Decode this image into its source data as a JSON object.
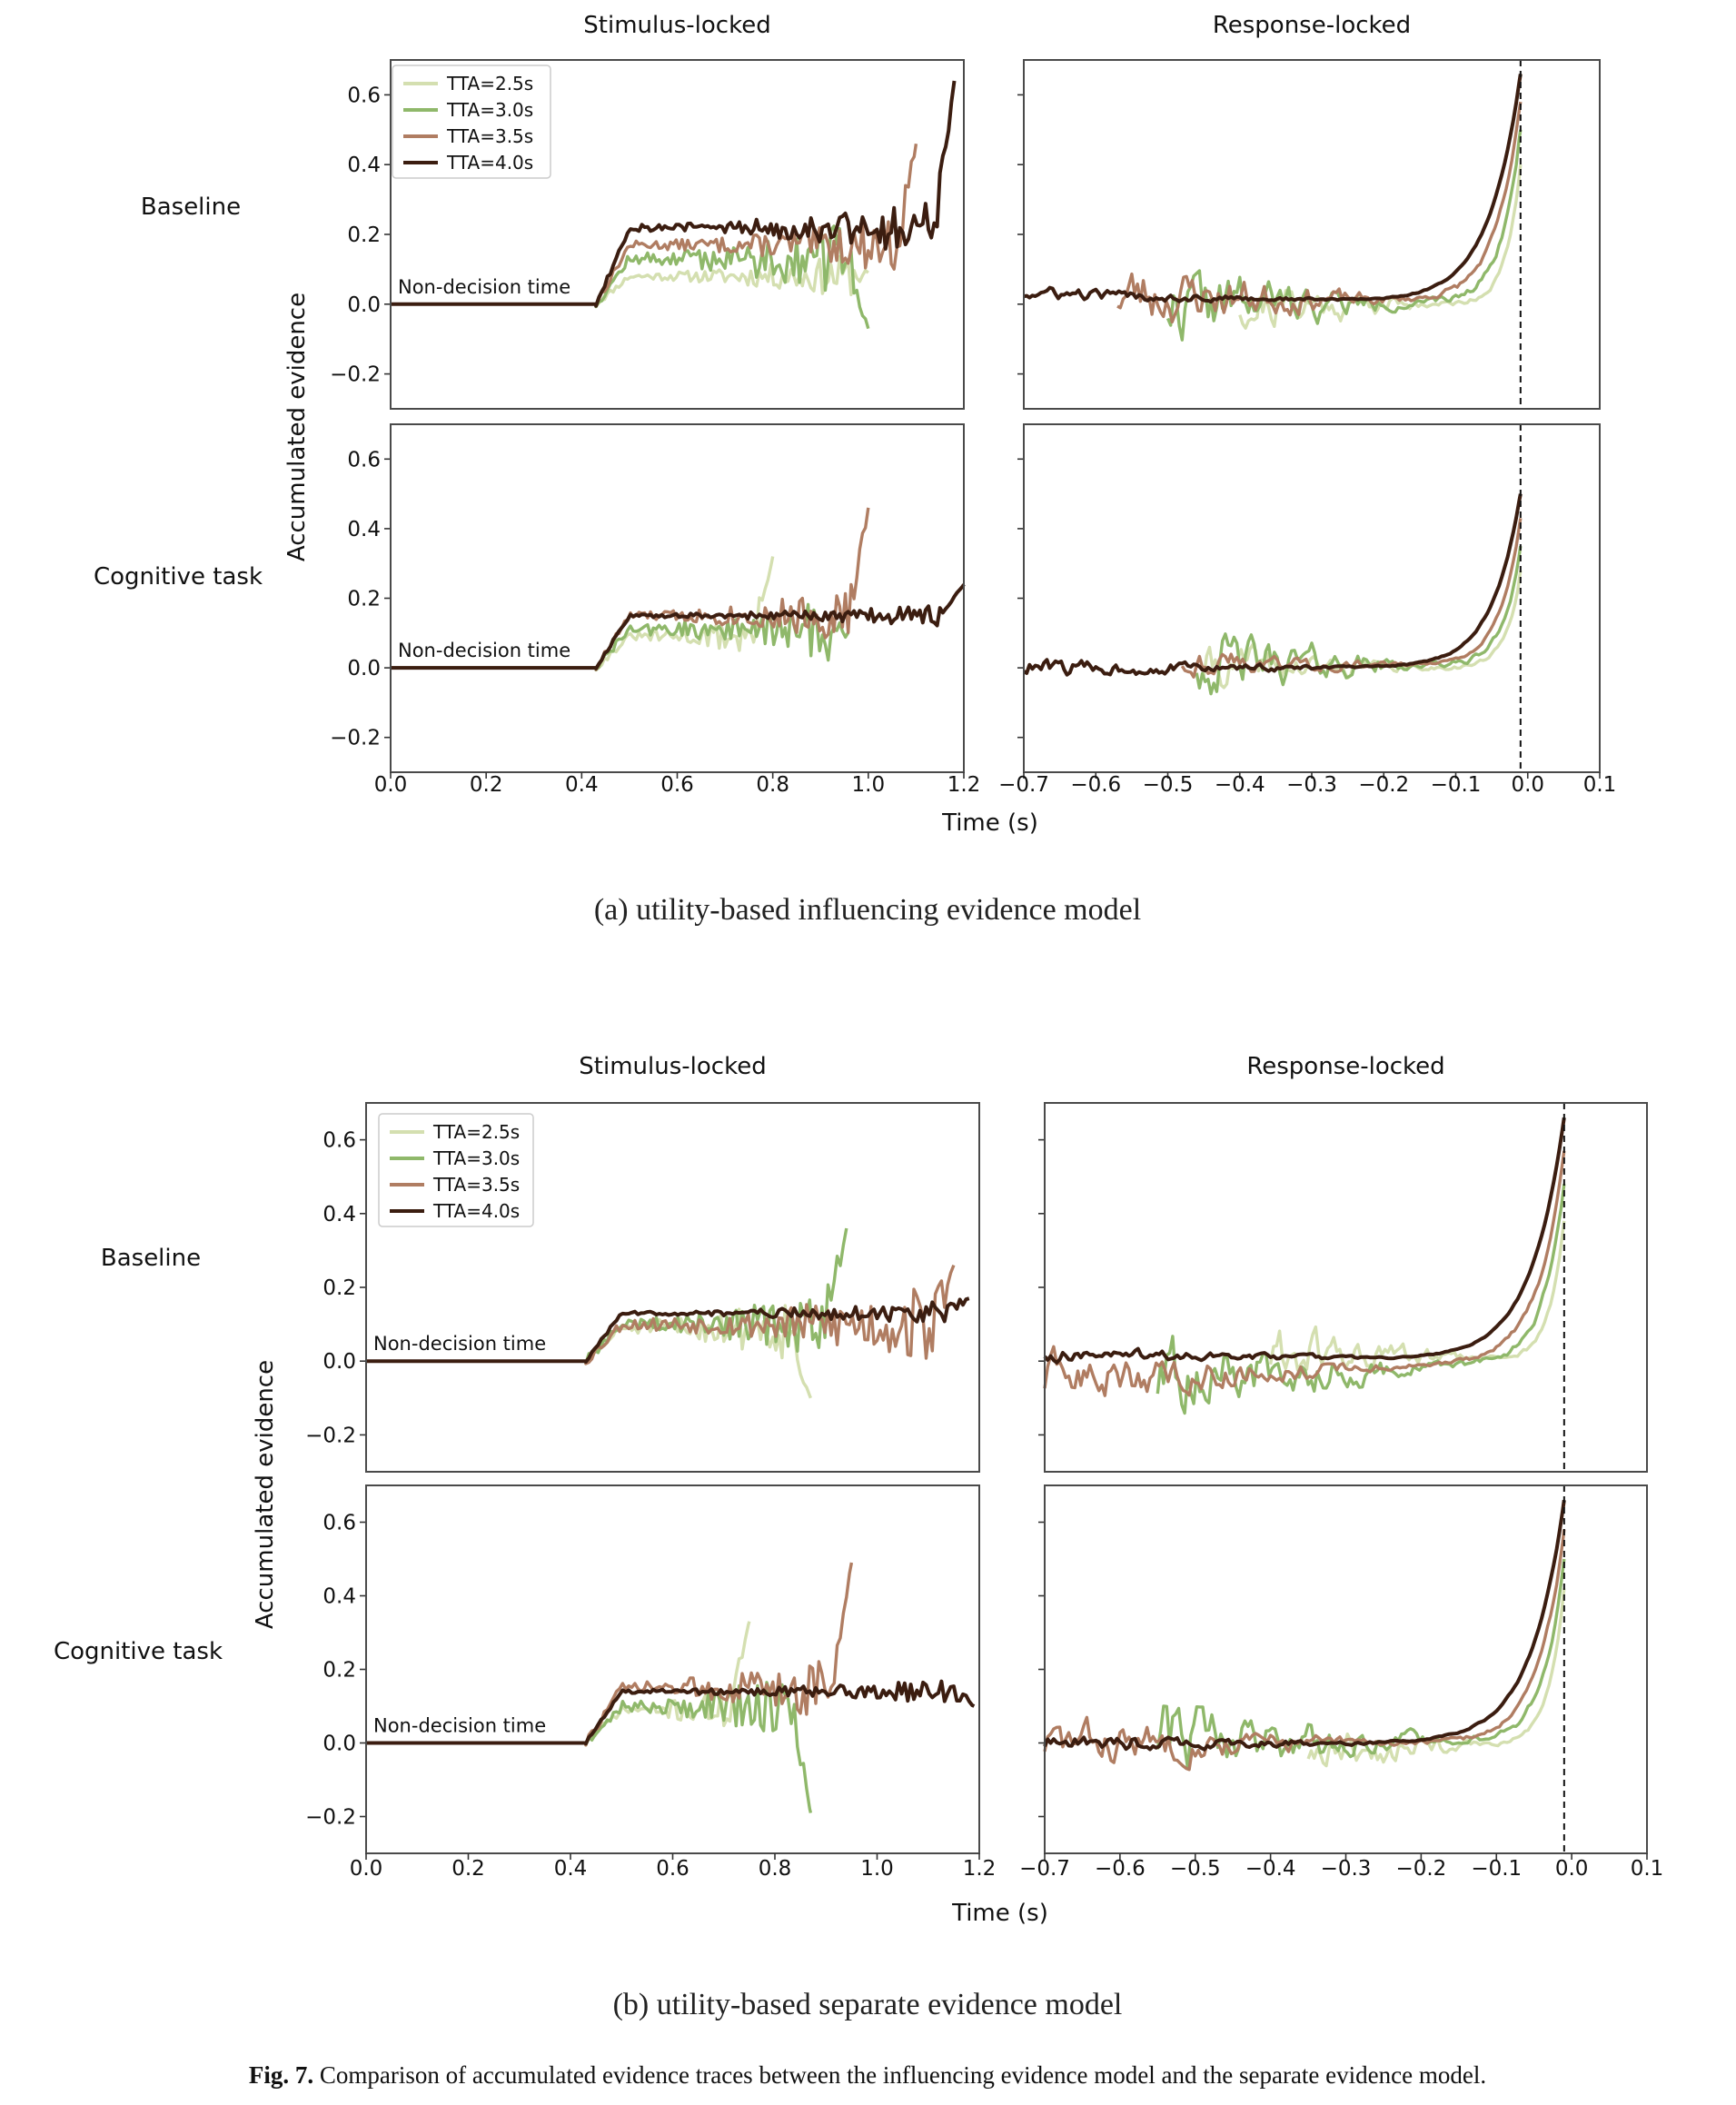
{
  "figure": {
    "caption_label": "Fig. 7.",
    "caption_text": "Comparison of accumulated evidence traces between the influencing evidence model and the separate evidence model."
  },
  "colors": {
    "TTA=2.5s": "#d4dfb0",
    "TTA=3.0s": "#8fb86a",
    "TTA=3.5s": "#b07d62",
    "TTA=4.0s": "#3b1d10",
    "frame": "#4a4a4a"
  },
  "chart_data": [
    {
      "panel": "a",
      "subcaption": "(a) utility-based influencing evidence model",
      "type": "line",
      "col_titles": [
        "Stimulus-locked",
        "Response-locked"
      ],
      "row_labels": [
        "Baseline",
        "Cognitive task"
      ],
      "ylabel": "Accumulated evidence",
      "xlabel": "Time (s)",
      "ylim": [
        -0.3,
        0.7
      ],
      "yticks": [
        "0.6",
        "0.4",
        "0.2",
        "0.0",
        "−0.2"
      ],
      "stim_xlim": [
        0.0,
        1.2
      ],
      "stim_xticks": [
        "0.0",
        "0.2",
        "0.4",
        "0.6",
        "0.8",
        "1.0",
        "1.2"
      ],
      "resp_xlim": [
        -0.7,
        0.1
      ],
      "resp_xticks": [
        "−0.7",
        "−0.6",
        "−0.5",
        "−0.4",
        "−0.3",
        "−0.2",
        "−0.1",
        "0.0",
        "0.1"
      ],
      "legend": [
        "TTA=2.5s",
        "TTA=3.0s",
        "TTA=3.5s",
        "TTA=4.0s"
      ],
      "annotation": "Non-decision time",
      "non_decision_time": 0.43,
      "response_line_x": -0.01,
      "rows": [
        {
          "row": "Baseline",
          "stim": [
            {
              "name": "TTA=2.5s",
              "end": 1.0,
              "level": 0.08,
              "noise": 0.04,
              "seed": 11,
              "ret": 0.09
            },
            {
              "name": "TTA=3.0s",
              "end": 1.0,
              "level": 0.13,
              "noise": 0.07,
              "seed": 12,
              "ret": -0.07
            },
            {
              "name": "TTA=3.5s",
              "end": 1.1,
              "level": 0.17,
              "noise": 0.05,
              "seed": 13,
              "ret": 0.46
            },
            {
              "name": "TTA=4.0s",
              "end": 1.18,
              "level": 0.22,
              "noise": 0.05,
              "seed": 14,
              "ret": 0.64
            }
          ],
          "resp": [
            {
              "name": "TTA=2.5s",
              "start": -0.4,
              "base": 0.0,
              "noise": 0.06,
              "seed": 21,
              "peak": 0.4,
              "tau": 0.02
            },
            {
              "name": "TTA=3.0s",
              "start": -0.5,
              "base": 0.0,
              "noise": 0.08,
              "seed": 22,
              "peak": 0.5,
              "tau": 0.028
            },
            {
              "name": "TTA=3.5s",
              "start": -0.57,
              "base": 0.03,
              "noise": 0.07,
              "seed": 23,
              "peak": 0.58,
              "tau": 0.035
            },
            {
              "name": "TTA=4.0s",
              "start": -0.7,
              "base": 0.03,
              "noise": 0.015,
              "seed": 24,
              "peak": 0.66,
              "tau": 0.045
            }
          ]
        },
        {
          "row": "Cognitive task",
          "stim": [
            {
              "name": "TTA=2.5s",
              "end": 0.8,
              "level": 0.09,
              "noise": 0.04,
              "seed": 31,
              "ret": 0.32
            },
            {
              "name": "TTA=3.0s",
              "end": 0.96,
              "level": 0.11,
              "noise": 0.06,
              "seed": 32,
              "ret": 0.1
            },
            {
              "name": "TTA=3.5s",
              "end": 1.0,
              "level": 0.15,
              "noise": 0.05,
              "seed": 33,
              "ret": 0.46
            },
            {
              "name": "TTA=4.0s",
              "end": 1.2,
              "level": 0.15,
              "noise": 0.02,
              "seed": 34,
              "ret": 0.24
            }
          ],
          "resp": [
            {
              "name": "TTA=2.5s",
              "start": -0.45,
              "base": 0.0,
              "noise": 0.05,
              "seed": 41,
              "peak": 0.28,
              "tau": 0.02
            },
            {
              "name": "TTA=3.0s",
              "start": -0.46,
              "base": 0.02,
              "noise": 0.07,
              "seed": 42,
              "peak": 0.35,
              "tau": 0.025
            },
            {
              "name": "TTA=3.5s",
              "start": -0.48,
              "base": 0.02,
              "noise": 0.03,
              "seed": 43,
              "peak": 0.43,
              "tau": 0.03
            },
            {
              "name": "TTA=4.0s",
              "start": -0.7,
              "base": 0.0,
              "noise": 0.02,
              "seed": 44,
              "peak": 0.5,
              "tau": 0.04
            }
          ]
        }
      ]
    },
    {
      "panel": "b",
      "subcaption": "(b) utility-based separate evidence model",
      "type": "line",
      "col_titles": [
        "Stimulus-locked",
        "Response-locked"
      ],
      "row_labels": [
        "Baseline",
        "Cognitive task"
      ],
      "ylabel": "Accumulated evidence",
      "xlabel": "Time (s)",
      "ylim": [
        -0.3,
        0.7
      ],
      "yticks": [
        "0.6",
        "0.4",
        "0.2",
        "0.0",
        "−0.2"
      ],
      "stim_xlim": [
        0.0,
        1.2
      ],
      "stim_xticks": [
        "0.0",
        "0.2",
        "0.4",
        "0.6",
        "0.8",
        "1.0",
        "1.2"
      ],
      "resp_xlim": [
        -0.7,
        0.1
      ],
      "resp_xticks": [
        "−0.7",
        "−0.6",
        "−0.5",
        "−0.4",
        "−0.3",
        "−0.2",
        "−0.1",
        "0.0",
        "0.1"
      ],
      "legend": [
        "TTA=2.5s",
        "TTA=3.0s",
        "TTA=3.5s",
        "TTA=4.0s"
      ],
      "annotation": "Non-decision time",
      "non_decision_time": 0.43,
      "response_line_x": -0.01,
      "rows": [
        {
          "row": "Baseline",
          "stim": [
            {
              "name": "TTA=2.5s",
              "end": 0.87,
              "level": 0.09,
              "noise": 0.06,
              "seed": 51,
              "ret": -0.1
            },
            {
              "name": "TTA=3.0s",
              "end": 0.94,
              "level": 0.1,
              "noise": 0.06,
              "seed": 52,
              "ret": 0.36
            },
            {
              "name": "TTA=3.5s",
              "end": 1.15,
              "level": 0.1,
              "noise": 0.07,
              "seed": 53,
              "ret": 0.26
            },
            {
              "name": "TTA=4.0s",
              "end": 1.18,
              "level": 0.13,
              "noise": 0.02,
              "seed": 54,
              "ret": 0.17
            }
          ],
          "resp": [
            {
              "name": "TTA=2.5s",
              "start": -0.4,
              "base": 0.02,
              "noise": 0.06,
              "seed": 61,
              "peak": 0.38,
              "tau": 0.02
            },
            {
              "name": "TTA=3.0s",
              "start": -0.55,
              "base": -0.05,
              "noise": 0.08,
              "seed": 62,
              "peak": 0.48,
              "tau": 0.028
            },
            {
              "name": "TTA=3.5s",
              "start": -0.7,
              "base": -0.05,
              "noise": 0.05,
              "seed": 63,
              "peak": 0.57,
              "tau": 0.035
            },
            {
              "name": "TTA=4.0s",
              "start": -0.7,
              "base": 0.02,
              "noise": 0.015,
              "seed": 64,
              "peak": 0.66,
              "tau": 0.045
            }
          ]
        },
        {
          "row": "Cognitive task",
          "stim": [
            {
              "name": "TTA=2.5s",
              "end": 0.75,
              "level": 0.09,
              "noise": 0.04,
              "seed": 71,
              "ret": 0.33
            },
            {
              "name": "TTA=3.0s",
              "end": 0.87,
              "level": 0.1,
              "noise": 0.06,
              "seed": 72,
              "ret": -0.19
            },
            {
              "name": "TTA=3.5s",
              "end": 0.95,
              "level": 0.15,
              "noise": 0.06,
              "seed": 73,
              "ret": 0.49
            },
            {
              "name": "TTA=4.0s",
              "end": 1.19,
              "level": 0.14,
              "noise": 0.02,
              "seed": 74,
              "ret": 0.1
            }
          ],
          "resp": [
            {
              "name": "TTA=2.5s",
              "start": -0.35,
              "base": -0.02,
              "noise": 0.05,
              "seed": 81,
              "peak": 0.42,
              "tau": 0.02
            },
            {
              "name": "TTA=3.0s",
              "start": -0.55,
              "base": 0.02,
              "noise": 0.08,
              "seed": 82,
              "peak": 0.5,
              "tau": 0.028
            },
            {
              "name": "TTA=3.5s",
              "start": -0.7,
              "base": 0.0,
              "noise": 0.05,
              "seed": 83,
              "peak": 0.58,
              "tau": 0.035
            },
            {
              "name": "TTA=4.0s",
              "start": -0.7,
              "base": 0.0,
              "noise": 0.02,
              "seed": 84,
              "peak": 0.66,
              "tau": 0.045
            }
          ]
        }
      ]
    }
  ]
}
